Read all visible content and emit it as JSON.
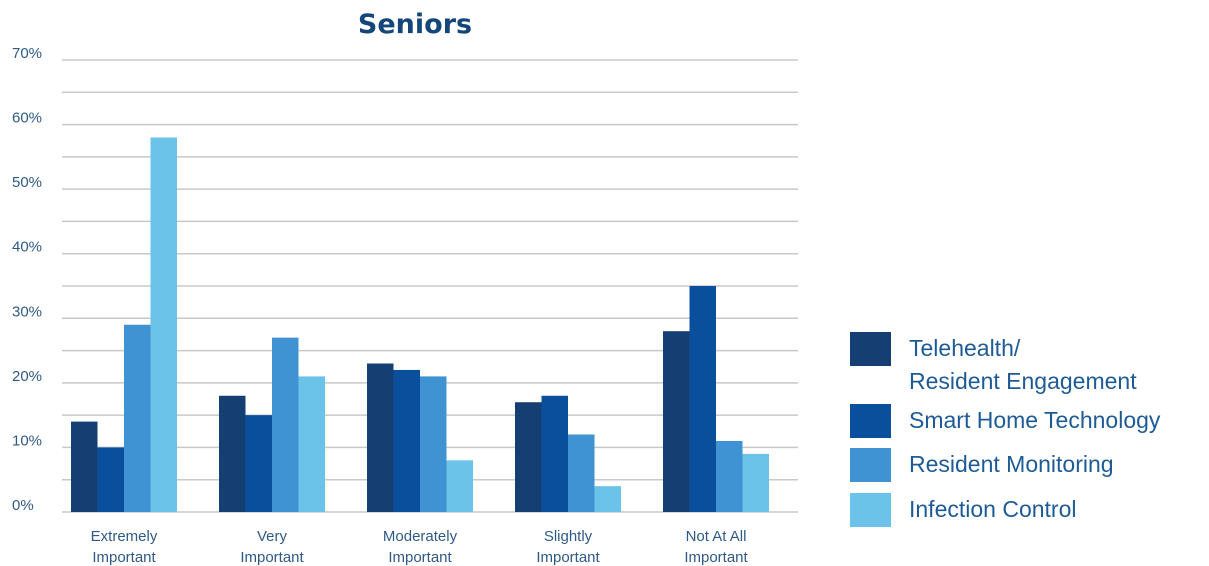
{
  "chart_data": {
    "type": "bar",
    "title": "Seniors",
    "xlabel": "",
    "ylabel": "",
    "ylim": [
      0,
      70
    ],
    "yticks": [
      0,
      10,
      20,
      30,
      40,
      50,
      60,
      70
    ],
    "ytick_labels": [
      "0%",
      "10%",
      "20%",
      "30%",
      "40%",
      "50%",
      "60%",
      "70%"
    ],
    "grid": true,
    "legend_placement": "right",
    "categories": [
      [
        "Extremely",
        "Important"
      ],
      [
        "Very",
        "Important"
      ],
      [
        "Moderately",
        "Important"
      ],
      [
        "Slightly",
        "Important"
      ],
      [
        "Not At All",
        "Important"
      ]
    ],
    "series": [
      {
        "name": [
          "Telehealth/",
          "Resident Engagement"
        ],
        "color": "#153f72",
        "values": [
          14,
          18,
          23,
          17,
          28
        ]
      },
      {
        "name": [
          "Smart Home Technology"
        ],
        "color": "#0a4f9c",
        "values": [
          10,
          15,
          22,
          18,
          35
        ]
      },
      {
        "name": [
          "Resident Monitoring"
        ],
        "color": "#3f93d2",
        "values": [
          29,
          27,
          21,
          12,
          11
        ]
      },
      {
        "name": [
          "Infection Control"
        ],
        "color": "#6cc3ea",
        "values": [
          58,
          21,
          8,
          4,
          9
        ]
      }
    ]
  }
}
